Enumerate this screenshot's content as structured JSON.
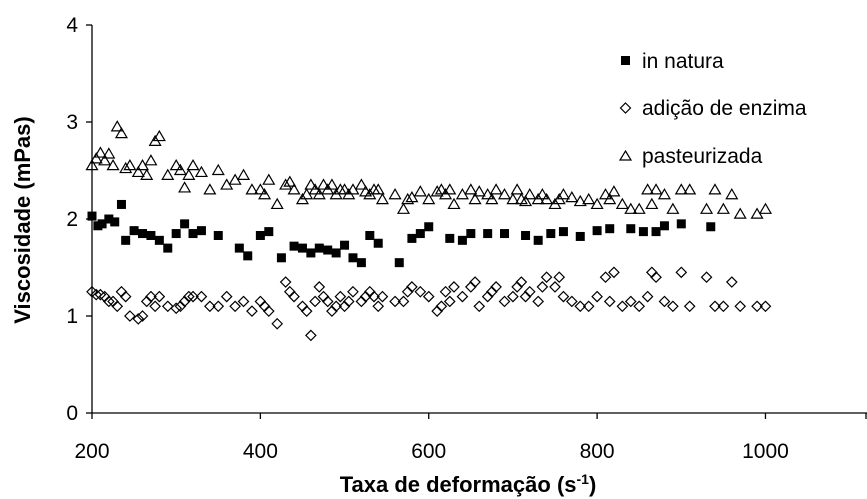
{
  "chart_data": {
    "type": "scatter",
    "title": "",
    "xlabel": "Taxa de deformação",
    "xlabel_unit_base": "(s",
    "xlabel_unit_exp": "-1",
    "xlabel_unit_close": ")",
    "ylabel": "Viscosidade (mPas)",
    "xlim": [
      200,
      1000
    ],
    "ylim": [
      0,
      4
    ],
    "x_ticks": [
      "200",
      "400",
      "600",
      "800",
      "1000"
    ],
    "y_ticks": [
      "0",
      "1",
      "2",
      "3",
      "4"
    ],
    "grid": false,
    "legend_position": "top-right",
    "series": [
      {
        "name": "in natura",
        "marker": "filled-square",
        "color": "#000000",
        "x": [
          200,
          207,
          212,
          220,
          227,
          235,
          240,
          250,
          260,
          270,
          280,
          290,
          300,
          310,
          320,
          330,
          350,
          375,
          385,
          400,
          410,
          425,
          440,
          450,
          460,
          470,
          480,
          490,
          500,
          510,
          520,
          530,
          540,
          565,
          580,
          590,
          600,
          625,
          640,
          650,
          670,
          690,
          715,
          730,
          745,
          760,
          780,
          800,
          815,
          840,
          855,
          870,
          880,
          900,
          935
        ],
        "y": [
          2.03,
          1.93,
          1.95,
          2.0,
          1.97,
          2.15,
          1.78,
          1.88,
          1.85,
          1.83,
          1.78,
          1.7,
          1.85,
          1.95,
          1.85,
          1.88,
          1.83,
          1.7,
          1.62,
          1.83,
          1.87,
          1.6,
          1.72,
          1.7,
          1.65,
          1.7,
          1.68,
          1.65,
          1.73,
          1.6,
          1.55,
          1.83,
          1.75,
          1.55,
          1.8,
          1.85,
          1.92,
          1.8,
          1.78,
          1.85,
          1.85,
          1.85,
          1.83,
          1.78,
          1.85,
          1.87,
          1.82,
          1.88,
          1.9,
          1.9,
          1.87,
          1.87,
          1.93,
          1.95,
          1.92
        ]
      },
      {
        "name": "adição de enzima",
        "marker": "open-diamond",
        "color": "#000000",
        "x": [
          200,
          205,
          210,
          215,
          220,
          225,
          230,
          235,
          240,
          245,
          255,
          260,
          265,
          270,
          275,
          280,
          290,
          300,
          305,
          310,
          315,
          320,
          330,
          340,
          350,
          360,
          370,
          380,
          390,
          400,
          405,
          410,
          420,
          430,
          435,
          440,
          450,
          455,
          460,
          465,
          470,
          475,
          480,
          485,
          490,
          495,
          500,
          505,
          510,
          520,
          525,
          530,
          535,
          540,
          545,
          560,
          570,
          575,
          580,
          590,
          600,
          610,
          615,
          620,
          625,
          630,
          640,
          650,
          655,
          660,
          670,
          675,
          680,
          690,
          700,
          705,
          710,
          715,
          720,
          730,
          735,
          740,
          750,
          755,
          760,
          770,
          780,
          790,
          800,
          810,
          815,
          820,
          830,
          840,
          850,
          860,
          865,
          870,
          880,
          890,
          900,
          910,
          930,
          940,
          950,
          960,
          970,
          990,
          1000
        ],
        "y": [
          1.25,
          1.22,
          1.22,
          1.2,
          1.15,
          1.15,
          1.1,
          1.25,
          1.2,
          1.0,
          0.97,
          1.0,
          1.15,
          1.2,
          1.1,
          1.2,
          1.1,
          1.08,
          1.1,
          1.15,
          1.2,
          1.2,
          1.2,
          1.1,
          1.1,
          1.2,
          1.1,
          1.15,
          1.05,
          1.15,
          1.1,
          1.05,
          0.92,
          1.35,
          1.25,
          1.2,
          1.1,
          1.05,
          0.8,
          1.15,
          1.3,
          1.2,
          1.15,
          1.05,
          1.1,
          1.2,
          1.1,
          1.15,
          1.25,
          1.15,
          1.2,
          1.25,
          1.2,
          1.1,
          1.2,
          1.15,
          1.15,
          1.25,
          1.3,
          1.25,
          1.2,
          1.05,
          1.1,
          1.25,
          1.15,
          1.3,
          1.2,
          1.3,
          1.35,
          1.1,
          1.2,
          1.25,
          1.3,
          1.15,
          1.2,
          1.3,
          1.35,
          1.2,
          1.25,
          1.15,
          1.3,
          1.4,
          1.3,
          1.4,
          1.2,
          1.15,
          1.1,
          1.1,
          1.2,
          1.4,
          1.15,
          1.45,
          1.1,
          1.15,
          1.1,
          1.2,
          1.45,
          1.4,
          1.15,
          1.1,
          1.45,
          1.1,
          1.4,
          1.1,
          1.1,
          1.35,
          1.1,
          1.1,
          1.1
        ]
      },
      {
        "name": "pasteurizada",
        "marker": "open-triangle",
        "color": "#000000",
        "x": [
          200,
          205,
          210,
          215,
          220,
          225,
          230,
          235,
          240,
          245,
          255,
          260,
          265,
          270,
          275,
          280,
          290,
          300,
          305,
          310,
          315,
          320,
          330,
          340,
          350,
          360,
          370,
          380,
          390,
          400,
          405,
          410,
          420,
          430,
          435,
          440,
          450,
          455,
          460,
          465,
          470,
          475,
          480,
          485,
          490,
          495,
          500,
          505,
          510,
          520,
          525,
          530,
          535,
          540,
          545,
          560,
          570,
          575,
          580,
          590,
          600,
          610,
          615,
          620,
          625,
          630,
          640,
          650,
          655,
          660,
          670,
          675,
          680,
          690,
          700,
          705,
          710,
          715,
          720,
          730,
          735,
          740,
          750,
          755,
          760,
          770,
          780,
          790,
          800,
          810,
          815,
          820,
          830,
          840,
          850,
          860,
          865,
          870,
          880,
          890,
          900,
          910,
          930,
          940,
          950,
          960,
          970,
          990,
          1000
        ],
        "y": [
          2.55,
          2.62,
          2.68,
          2.6,
          2.67,
          2.55,
          2.95,
          2.88,
          2.52,
          2.55,
          2.48,
          2.55,
          2.45,
          2.6,
          2.8,
          2.85,
          2.45,
          2.55,
          2.5,
          2.32,
          2.45,
          2.55,
          2.48,
          2.3,
          2.5,
          2.35,
          2.4,
          2.45,
          2.3,
          2.3,
          2.25,
          2.4,
          2.15,
          2.35,
          2.38,
          2.3,
          2.2,
          2.25,
          2.35,
          2.3,
          2.25,
          2.35,
          2.3,
          2.35,
          2.25,
          2.3,
          2.3,
          2.25,
          2.3,
          2.35,
          2.28,
          2.25,
          2.3,
          2.3,
          2.2,
          2.25,
          2.1,
          2.2,
          2.22,
          2.28,
          2.2,
          2.28,
          2.3,
          2.25,
          2.3,
          2.15,
          2.25,
          2.3,
          2.2,
          2.28,
          2.25,
          2.2,
          2.3,
          2.25,
          2.2,
          2.3,
          2.2,
          2.18,
          2.25,
          2.2,
          2.25,
          2.2,
          2.15,
          2.2,
          2.25,
          2.22,
          2.18,
          2.2,
          2.15,
          2.25,
          2.2,
          2.28,
          2.15,
          2.1,
          2.1,
          2.3,
          2.15,
          2.3,
          2.25,
          2.1,
          2.3,
          2.3,
          2.1,
          2.3,
          2.1,
          2.25,
          2.05,
          2.05,
          2.1
        ]
      }
    ]
  }
}
